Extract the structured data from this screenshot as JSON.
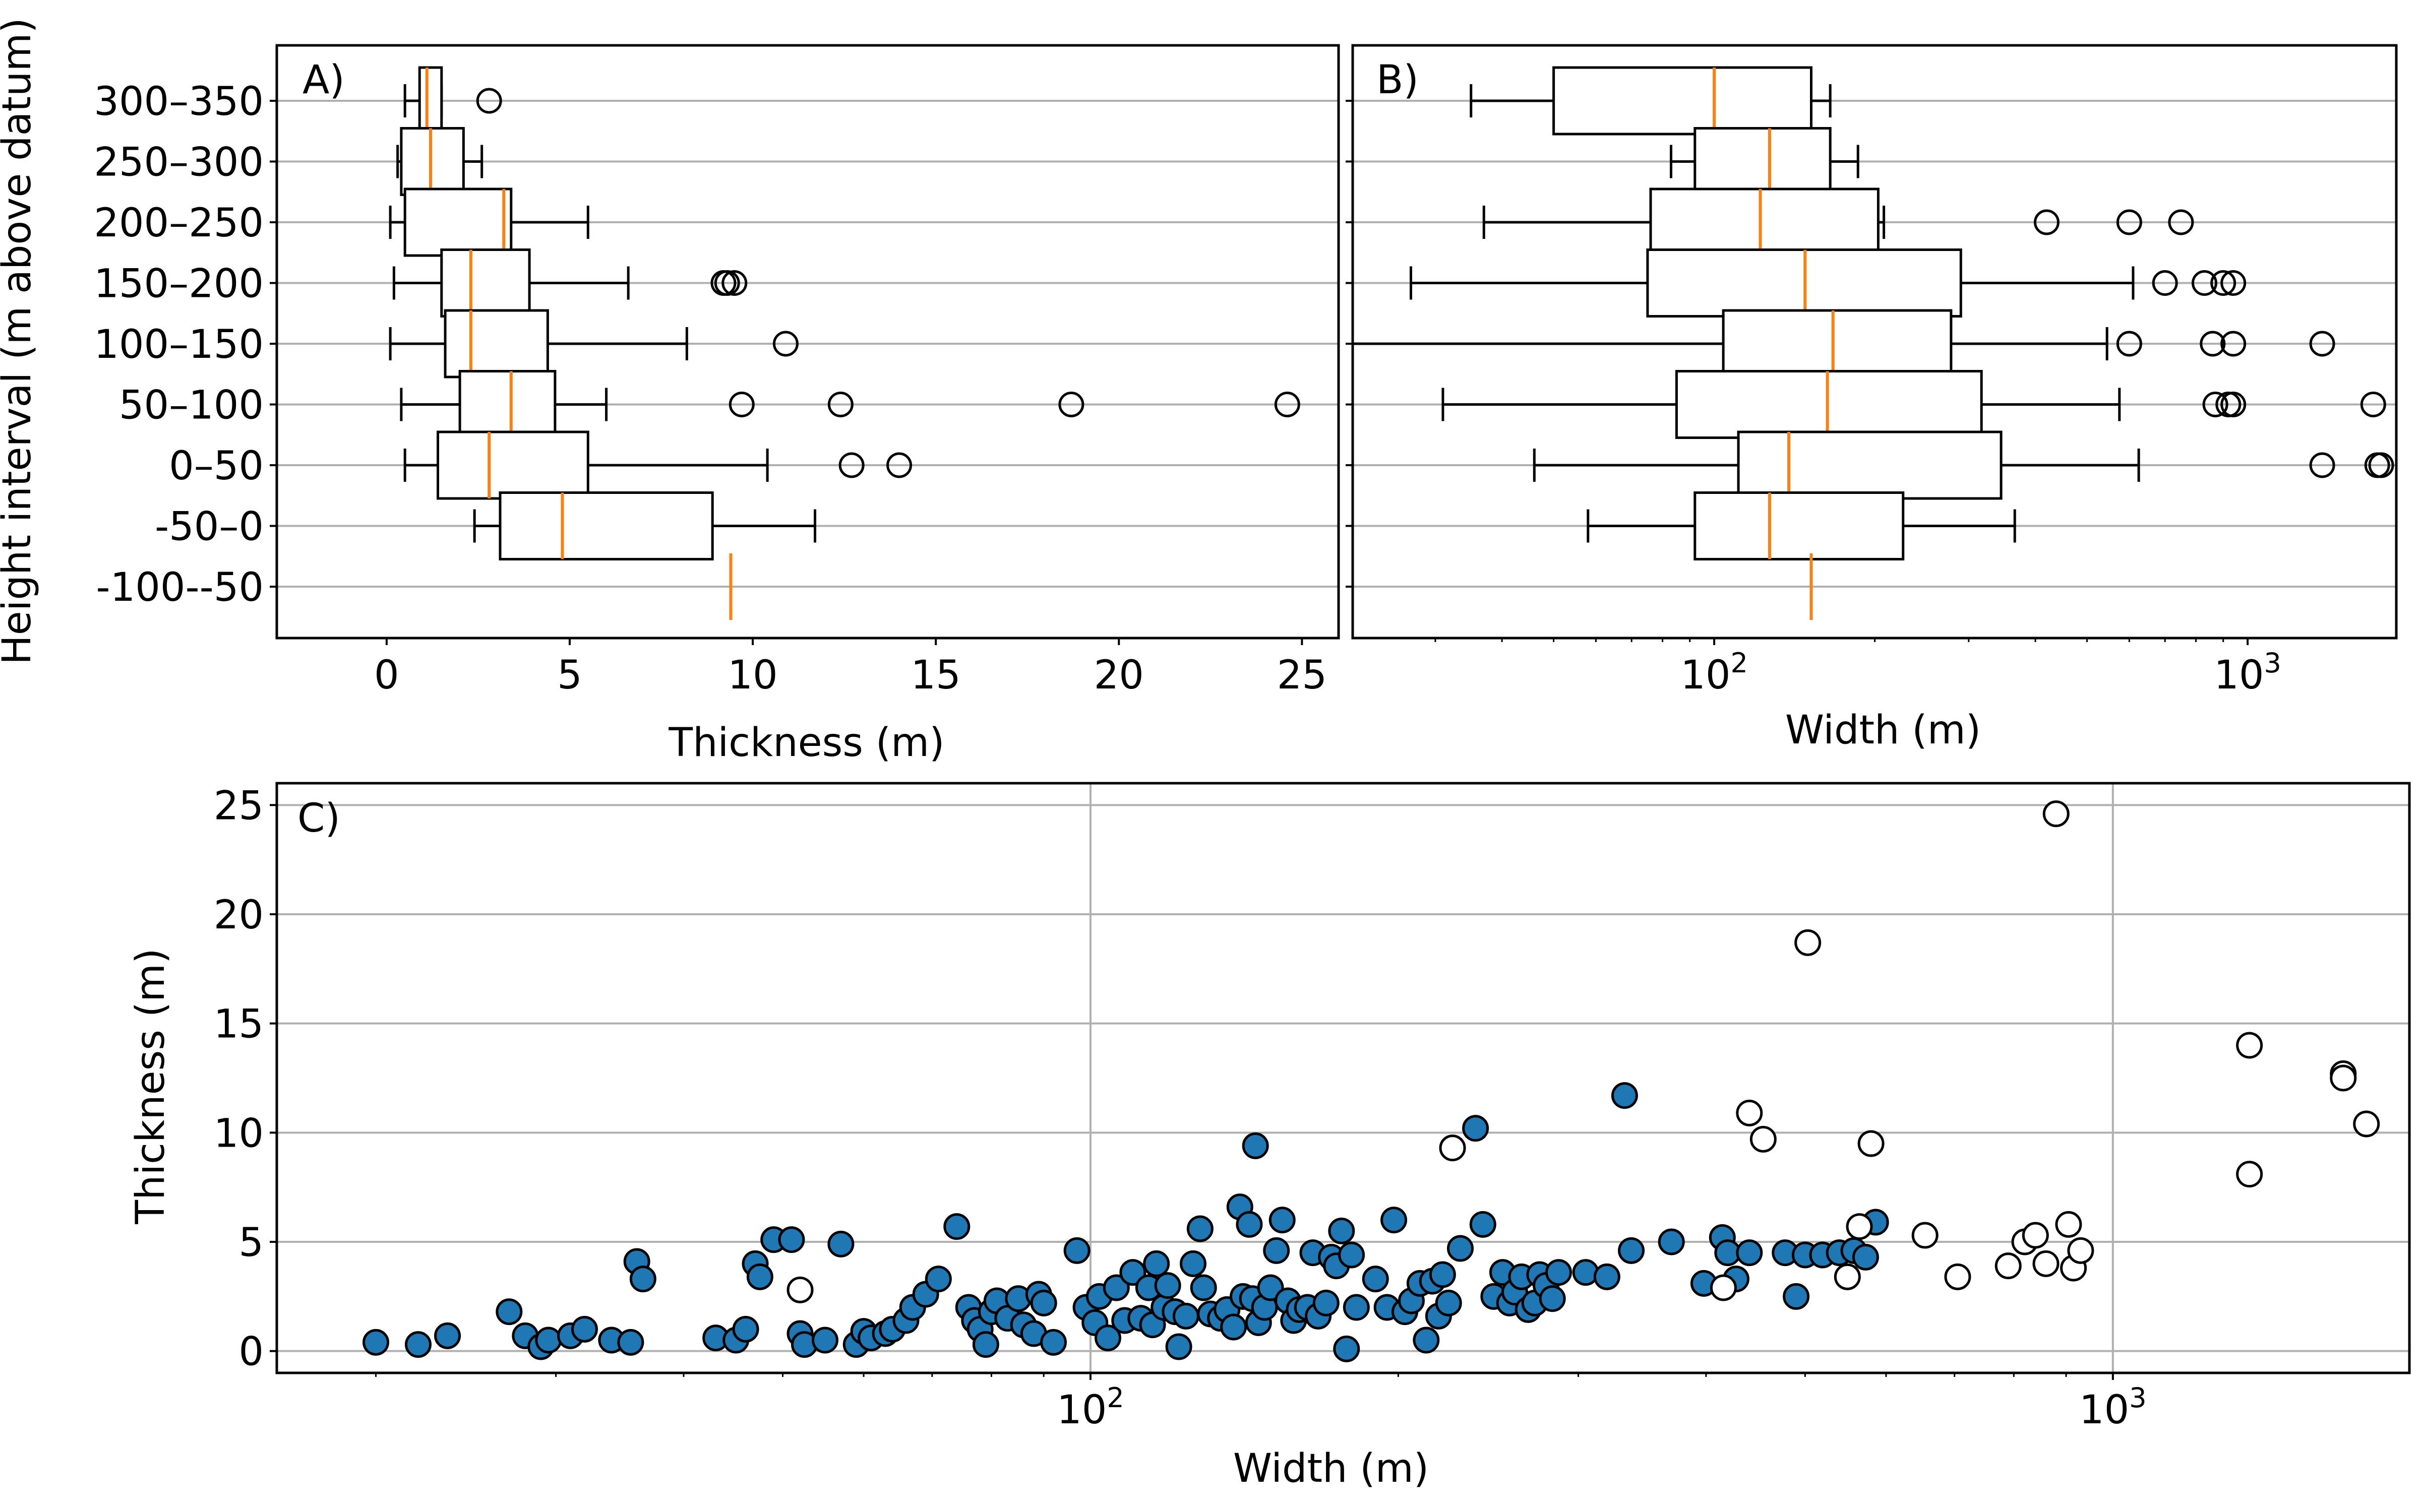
{
  "figure": {
    "panels": [
      "A)",
      "B)",
      "C)"
    ]
  },
  "chart_data": [
    {
      "panel": "A)",
      "type": "box",
      "orientation": "horizontal",
      "xlabel": "Thickness (m)",
      "ylabel": "Height interval (m above datum)",
      "xscale": "linear",
      "xlim": [
        -3,
        26
      ],
      "xticks": [
        0,
        5,
        10,
        15,
        20,
        25
      ],
      "xtick_labels": [
        "0",
        "5",
        "10",
        "15",
        "20",
        "25"
      ],
      "grid": "horizontal",
      "median_color": "#ff7f0e",
      "box_color": "#000000",
      "categories": [
        "300–350",
        "250–300",
        "200–250",
        "150–200",
        "100–150",
        "50–100",
        "0–50",
        "-50–0",
        "-100--50"
      ],
      "boxes": [
        {
          "whislo": 0.5,
          "q1": 0.9,
          "med": 1.1,
          "q3": 1.5,
          "whishi": 1.5,
          "fliers": [
            2.8
          ]
        },
        {
          "whislo": 0.3,
          "q1": 0.4,
          "med": 1.2,
          "q3": 2.1,
          "whishi": 2.6,
          "fliers": []
        },
        {
          "whislo": 0.1,
          "q1": 0.5,
          "med": 3.2,
          "q3": 3.4,
          "whishi": 5.5,
          "fliers": []
        },
        {
          "whislo": 0.2,
          "q1": 1.5,
          "med": 2.3,
          "q3": 3.9,
          "whishi": 6.6,
          "fliers": [
            9.2,
            9.3,
            9.5
          ]
        },
        {
          "whislo": 0.1,
          "q1": 1.6,
          "med": 2.3,
          "q3": 4.4,
          "whishi": 8.2,
          "fliers": [
            10.9
          ]
        },
        {
          "whislo": 0.4,
          "q1": 2.0,
          "med": 3.4,
          "q3": 4.6,
          "whishi": 6.0,
          "fliers": [
            9.7,
            12.4,
            18.7,
            24.6
          ]
        },
        {
          "whislo": 0.5,
          "q1": 1.4,
          "med": 2.8,
          "q3": 5.5,
          "whishi": 10.4,
          "fliers": [
            12.7,
            14.0
          ]
        },
        {
          "whislo": 2.4,
          "q1": 3.1,
          "med": 4.8,
          "q3": 8.9,
          "whishi": 11.7,
          "fliers": []
        },
        {
          "whislo": 9.4,
          "q1": 9.4,
          "med": 9.4,
          "q3": 9.4,
          "whishi": 9.4,
          "fliers": []
        }
      ]
    },
    {
      "panel": "B)",
      "type": "box",
      "orientation": "horizontal",
      "xlabel": "Width (m)",
      "xscale": "log",
      "xlim": [
        21,
        1900
      ],
      "xticks": [
        100,
        1000
      ],
      "xtick_labels": [
        "10",
        "10"
      ],
      "xtick_exponents": [
        "2",
        "3"
      ],
      "grid": "horizontal",
      "median_color": "#ff7f0e",
      "box_color": "#000000",
      "categories": [
        "300–350",
        "250–300",
        "200–250",
        "150–200",
        "100–150",
        "50–100",
        "0–50",
        "-50–0",
        "-100--50"
      ],
      "boxes": [
        {
          "whislo": 35,
          "q1": 50,
          "med": 100,
          "q3": 152,
          "whishi": 165,
          "fliers": []
        },
        {
          "whislo": 83,
          "q1": 92,
          "med": 127,
          "q3": 165,
          "whishi": 186,
          "fliers": []
        },
        {
          "whislo": 37,
          "q1": 76,
          "med": 122,
          "q3": 203,
          "whishi": 208,
          "fliers": [
            420,
            600,
            750
          ]
        },
        {
          "whislo": 27,
          "q1": 75,
          "med": 148,
          "q3": 290,
          "whishi": 610,
          "fliers": [
            700,
            830,
            900,
            940
          ]
        },
        {
          "whislo": 21,
          "q1": 104,
          "med": 167,
          "q3": 278,
          "whishi": 545,
          "fliers": [
            600,
            860,
            940,
            1380
          ]
        },
        {
          "whislo": 31,
          "q1": 85,
          "med": 163,
          "q3": 317,
          "whishi": 575,
          "fliers": [
            870,
            920,
            940,
            1720
          ]
        },
        {
          "whislo": 46,
          "q1": 111,
          "med": 138,
          "q3": 345,
          "whishi": 625,
          "fliers": [
            1380,
            1750,
            1780
          ]
        },
        {
          "whislo": 58,
          "q1": 92,
          "med": 127,
          "q3": 226,
          "whishi": 366,
          "fliers": []
        },
        {
          "whislo": 152,
          "q1": 152,
          "med": 152,
          "q3": 152,
          "whishi": 152,
          "fliers": []
        }
      ]
    },
    {
      "panel": "C)",
      "type": "scatter",
      "xlabel": "Width (m)",
      "ylabel": "Thickness (m)",
      "xscale": "log",
      "xlim": [
        16,
        1950
      ],
      "ylim": [
        -1,
        26
      ],
      "xticks": [
        100,
        1000
      ],
      "xtick_labels": [
        "10",
        "10"
      ],
      "xtick_exponents": [
        "2",
        "3"
      ],
      "yticks": [
        0,
        5,
        10,
        15,
        20,
        25
      ],
      "ytick_labels": [
        "0",
        "5",
        "10",
        "15",
        "20",
        "25"
      ],
      "grid": "both",
      "series": [
        {
          "color": "#1f77b4",
          "points": [
            [
              20,
              0.4
            ],
            [
              22,
              0.3
            ],
            [
              23.5,
              0.7
            ],
            [
              27,
              1.8
            ],
            [
              28,
              0.7
            ],
            [
              29,
              0.2
            ],
            [
              29.5,
              0.5
            ],
            [
              31,
              0.7
            ],
            [
              32,
              1.0
            ],
            [
              34,
              0.5
            ],
            [
              36,
              4.1
            ],
            [
              36.5,
              3.3
            ],
            [
              35.5,
              0.4
            ],
            [
              43,
              0.6
            ],
            [
              45,
              0.5
            ],
            [
              46,
              1.0
            ],
            [
              47,
              4.0
            ],
            [
              47.5,
              3.4
            ],
            [
              49,
              5.1
            ],
            [
              51,
              5.1
            ],
            [
              52,
              0.8
            ],
            [
              52.5,
              0.3
            ],
            [
              55,
              0.5
            ],
            [
              57,
              4.9
            ],
            [
              59,
              0.3
            ],
            [
              60,
              0.9
            ],
            [
              61,
              0.6
            ],
            [
              63,
              0.8
            ],
            [
              64,
              1.0
            ],
            [
              66,
              1.4
            ],
            [
              67,
              2.0
            ],
            [
              69,
              2.6
            ],
            [
              71,
              3.3
            ],
            [
              74,
              5.7
            ],
            [
              76,
              2.0
            ],
            [
              77,
              1.4
            ],
            [
              78,
              1.0
            ],
            [
              79,
              0.3
            ],
            [
              80,
              1.8
            ],
            [
              81,
              2.3
            ],
            [
              83,
              1.5
            ],
            [
              85,
              2.4
            ],
            [
              86,
              1.2
            ],
            [
              88,
              0.8
            ],
            [
              89,
              2.6
            ],
            [
              90,
              2.2
            ],
            [
              92,
              0.4
            ],
            [
              97,
              4.6
            ],
            [
              99,
              2.0
            ],
            [
              101,
              1.3
            ],
            [
              102,
              2.5
            ],
            [
              104,
              0.6
            ],
            [
              106,
              2.9
            ],
            [
              108,
              1.4
            ],
            [
              110,
              3.6
            ],
            [
              112,
              1.5
            ],
            [
              114,
              2.9
            ],
            [
              115,
              1.2
            ],
            [
              116,
              4.0
            ],
            [
              118,
              2.0
            ],
            [
              119,
              3.0
            ],
            [
              121,
              1.8
            ],
            [
              122,
              0.2
            ],
            [
              124,
              1.6
            ],
            [
              126,
              4.0
            ],
            [
              128,
              5.6
            ],
            [
              129,
              2.9
            ],
            [
              131,
              1.7
            ],
            [
              134,
              1.5
            ],
            [
              136,
              1.9
            ],
            [
              138,
              1.1
            ],
            [
              140,
              6.6
            ],
            [
              141,
              2.5
            ],
            [
              143,
              5.8
            ],
            [
              144,
              2.4
            ],
            [
              145,
              9.4
            ],
            [
              146,
              1.3
            ],
            [
              148,
              2.0
            ],
            [
              150,
              2.9
            ],
            [
              152,
              4.6
            ],
            [
              154,
              6.0
            ],
            [
              156,
              2.3
            ],
            [
              158,
              1.4
            ],
            [
              160,
              1.9
            ],
            [
              163,
              2.0
            ],
            [
              165,
              4.5
            ],
            [
              167,
              1.6
            ],
            [
              170,
              2.2
            ],
            [
              172,
              4.3
            ],
            [
              174,
              3.9
            ],
            [
              176,
              5.5
            ],
            [
              178,
              0.1
            ],
            [
              180,
              4.4
            ],
            [
              182,
              2.0
            ],
            [
              190,
              3.3
            ],
            [
              195,
              2.0
            ],
            [
              198,
              6.0
            ],
            [
              203,
              1.8
            ],
            [
              206,
              2.3
            ],
            [
              210,
              3.1
            ],
            [
              213,
              0.5
            ],
            [
              216,
              3.2
            ],
            [
              219,
              1.6
            ],
            [
              221,
              3.5
            ],
            [
              224,
              2.2
            ],
            [
              230,
              4.7
            ],
            [
              238,
              10.2
            ],
            [
              242,
              5.8
            ],
            [
              248,
              2.5
            ],
            [
              253,
              3.6
            ],
            [
              257,
              2.2
            ],
            [
              260,
              2.7
            ],
            [
              264,
              3.4
            ],
            [
              268,
              1.9
            ],
            [
              272,
              2.2
            ],
            [
              275,
              3.5
            ],
            [
              279,
              3.0
            ],
            [
              283,
              2.4
            ],
            [
              287,
              3.6
            ],
            [
              305,
              3.6
            ],
            [
              320,
              3.4
            ],
            [
              333,
              11.7
            ],
            [
              338,
              4.6
            ],
            [
              370,
              5.0
            ],
            [
              398,
              3.1
            ],
            [
              415,
              5.2
            ],
            [
              420,
              4.5
            ],
            [
              428,
              3.3
            ],
            [
              441,
              4.5
            ],
            [
              478,
              4.5
            ],
            [
              490,
              2.5
            ],
            [
              500,
              4.4
            ],
            [
              520,
              4.4
            ],
            [
              540,
              4.5
            ],
            [
              558,
              4.6
            ],
            [
              573,
              4.3
            ],
            [
              586,
              5.9
            ]
          ]
        },
        {
          "color": "#ffffff",
          "points": [
            [
              52,
              2.8
            ],
            [
              226,
              9.3
            ],
            [
              416,
              2.9
            ],
            [
              441,
              10.9
            ],
            [
              455,
              9.7
            ],
            [
              503,
              18.7
            ],
            [
              550,
              3.4
            ],
            [
              565,
              5.7
            ],
            [
              580,
              9.5
            ],
            [
              655,
              5.3
            ],
            [
              705,
              3.4
            ],
            [
              790,
              3.9
            ],
            [
              820,
              5.0
            ],
            [
              840,
              5.3
            ],
            [
              860,
              4.0
            ],
            [
              880,
              24.6
            ],
            [
              905,
              5.8
            ],
            [
              915,
              3.8
            ],
            [
              930,
              4.6
            ],
            [
              1360,
              14.0
            ],
            [
              1360,
              8.1
            ],
            [
              1680,
              12.7
            ],
            [
              1680,
              12.5
            ],
            [
              1770,
              10.4
            ]
          ]
        }
      ]
    }
  ]
}
